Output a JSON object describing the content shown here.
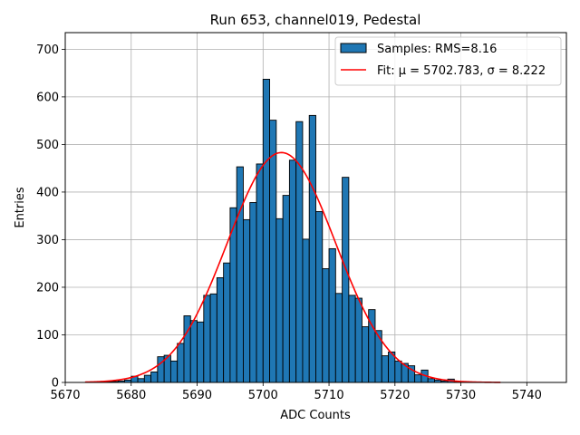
{
  "chart_data": {
    "type": "bar",
    "title": "Run 653, channel019, Pedestal",
    "xlabel": "ADC Counts",
    "ylabel": "Entries",
    "xlim": [
      5670,
      5746
    ],
    "ylim": [
      0,
      735
    ],
    "xticks": [
      5670,
      5680,
      5690,
      5700,
      5710,
      5720,
      5730,
      5740
    ],
    "yticks": [
      0,
      100,
      200,
      300,
      400,
      500,
      600,
      700
    ],
    "grid": true,
    "legend_position": "top-right",
    "bin_width": 1,
    "histogram": {
      "name": "Samples: RMS=8.16",
      "color": "#1f77b4",
      "edge_color": "#000000",
      "bin_left_edges": [
        5676,
        5677,
        5678,
        5679,
        5680,
        5681,
        5682,
        5683,
        5684,
        5685,
        5686,
        5687,
        5688,
        5689,
        5690,
        5691,
        5692,
        5693,
        5694,
        5695,
        5696,
        5697,
        5698,
        5699,
        5700,
        5701,
        5702,
        5703,
        5704,
        5705,
        5706,
        5707,
        5708,
        5709,
        5710,
        5711,
        5712,
        5713,
        5714,
        5715,
        5716,
        5717,
        5718,
        5719,
        5720,
        5721,
        5722,
        5723,
        5724,
        5725,
        5726,
        5727,
        5728,
        5729
      ],
      "counts": [
        1,
        2,
        3,
        5,
        13,
        8,
        15,
        22,
        54,
        57,
        45,
        82,
        140,
        130,
        127,
        183,
        186,
        220,
        251,
        367,
        453,
        342,
        378,
        459,
        637,
        551,
        344,
        393,
        467,
        548,
        301,
        561,
        359,
        239,
        281,
        187,
        431,
        183,
        177,
        117,
        153,
        109,
        56,
        64,
        45,
        40,
        35,
        16,
        26,
        8,
        5,
        3,
        7,
        1
      ]
    },
    "fit": {
      "name": "Fit: μ = 5702.783, σ = 8.222",
      "color": "#ff0000",
      "mu": 5702.783,
      "sigma": 8.222,
      "amplitude": 483,
      "x_range": [
        5673,
        5736
      ]
    }
  }
}
